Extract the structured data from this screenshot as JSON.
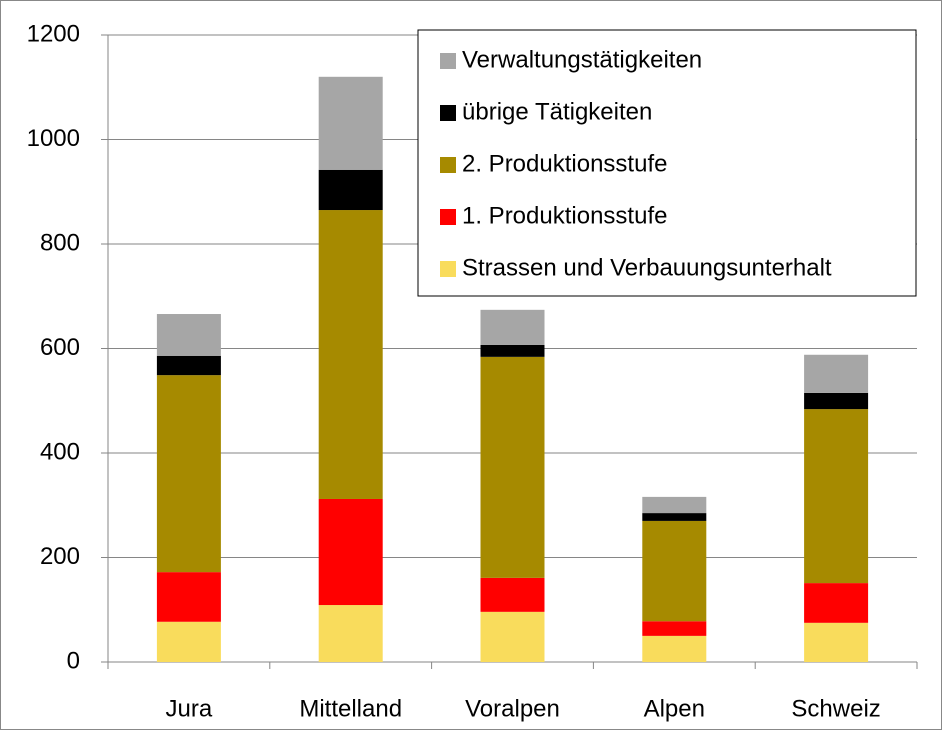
{
  "chart_data": {
    "type": "stacked_bar",
    "categories": [
      "Jura",
      "Mittelland",
      "Voralpen",
      "Alpen",
      "Schweiz"
    ],
    "series": [
      {
        "name": "Strassen und Verbauungsunterhalt",
        "color": "#f9dc5c",
        "values": [
          77,
          109,
          96,
          50,
          75
        ]
      },
      {
        "name": "1. Produktionsstufe",
        "color": "#ff0000",
        "values": [
          95,
          203,
          65,
          28,
          76
        ]
      },
      {
        "name": "2. Produktionsstufe",
        "color": "#a68a00",
        "values": [
          377,
          553,
          423,
          192,
          333
        ]
      },
      {
        "name": "übrige Tätigkeiten",
        "color": "#000000",
        "values": [
          37,
          77,
          23,
          15,
          31
        ]
      },
      {
        "name": "Verwaltungstätigkeiten",
        "color": "#a6a6a6",
        "values": [
          80,
          178,
          67,
          31,
          73
        ]
      }
    ],
    "ylim": [
      0,
      1200
    ],
    "yticks": [
      0,
      200,
      400,
      600,
      800,
      1000,
      1200
    ],
    "grid": true,
    "legend": "upper right"
  }
}
